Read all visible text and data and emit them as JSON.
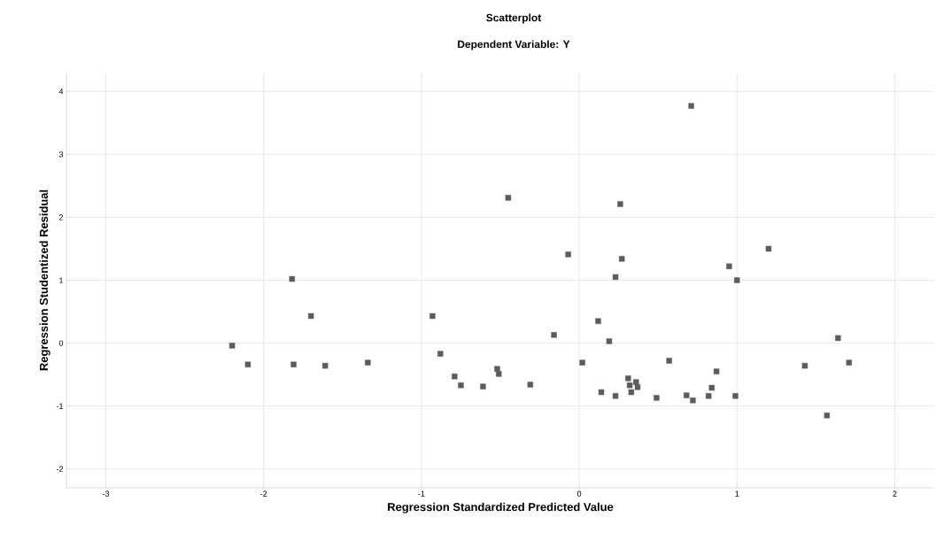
{
  "chart_data": {
    "type": "scatter",
    "title": "Scatterplot",
    "subtitle": "Dependent Variable: Y",
    "xlabel": "Regression Standardized Predicted Value",
    "ylabel": "Regression Studentized Residual",
    "x": [
      -2.2,
      -2.1,
      -1.82,
      -1.81,
      -1.7,
      -1.61,
      -1.34,
      -0.93,
      -0.88,
      -0.79,
      -0.75,
      -0.61,
      -0.52,
      -0.51,
      -0.45,
      -0.31,
      -0.07,
      -0.16,
      0.02,
      0.12,
      0.14,
      0.19,
      0.23,
      0.23,
      0.26,
      0.27,
      0.31,
      0.32,
      0.33,
      0.36,
      0.37,
      0.49,
      0.57,
      0.71,
      0.68,
      0.72,
      0.82,
      0.84,
      0.87,
      0.95,
      1.0,
      0.99,
      1.2,
      1.43,
      1.57,
      1.64,
      1.71
    ],
    "values": [
      -0.04,
      -0.34,
      1.02,
      -0.34,
      0.43,
      -0.36,
      -0.31,
      0.43,
      -0.17,
      -0.53,
      -0.67,
      -0.69,
      -0.41,
      -0.49,
      2.31,
      -0.66,
      1.41,
      0.13,
      -0.31,
      0.35,
      -0.78,
      0.03,
      1.05,
      -0.84,
      2.21,
      1.34,
      -0.56,
      -0.67,
      -0.78,
      -0.62,
      -0.7,
      -0.87,
      -0.28,
      3.77,
      -0.83,
      -0.91,
      -0.84,
      -0.71,
      -0.45,
      1.22,
      1.0,
      -0.84,
      1.5,
      -0.36,
      -1.15,
      0.08,
      -0.31
    ],
    "color": "#5c5c5c",
    "marker": "square",
    "grid": true,
    "xlim": [
      -3.25,
      2.25
    ],
    "ylim": [
      -2.3,
      4.3
    ],
    "xticks": [
      -3,
      -2,
      -1,
      0,
      1,
      2
    ],
    "yticks": [
      -2,
      -1,
      0,
      1,
      2,
      3,
      4
    ]
  }
}
